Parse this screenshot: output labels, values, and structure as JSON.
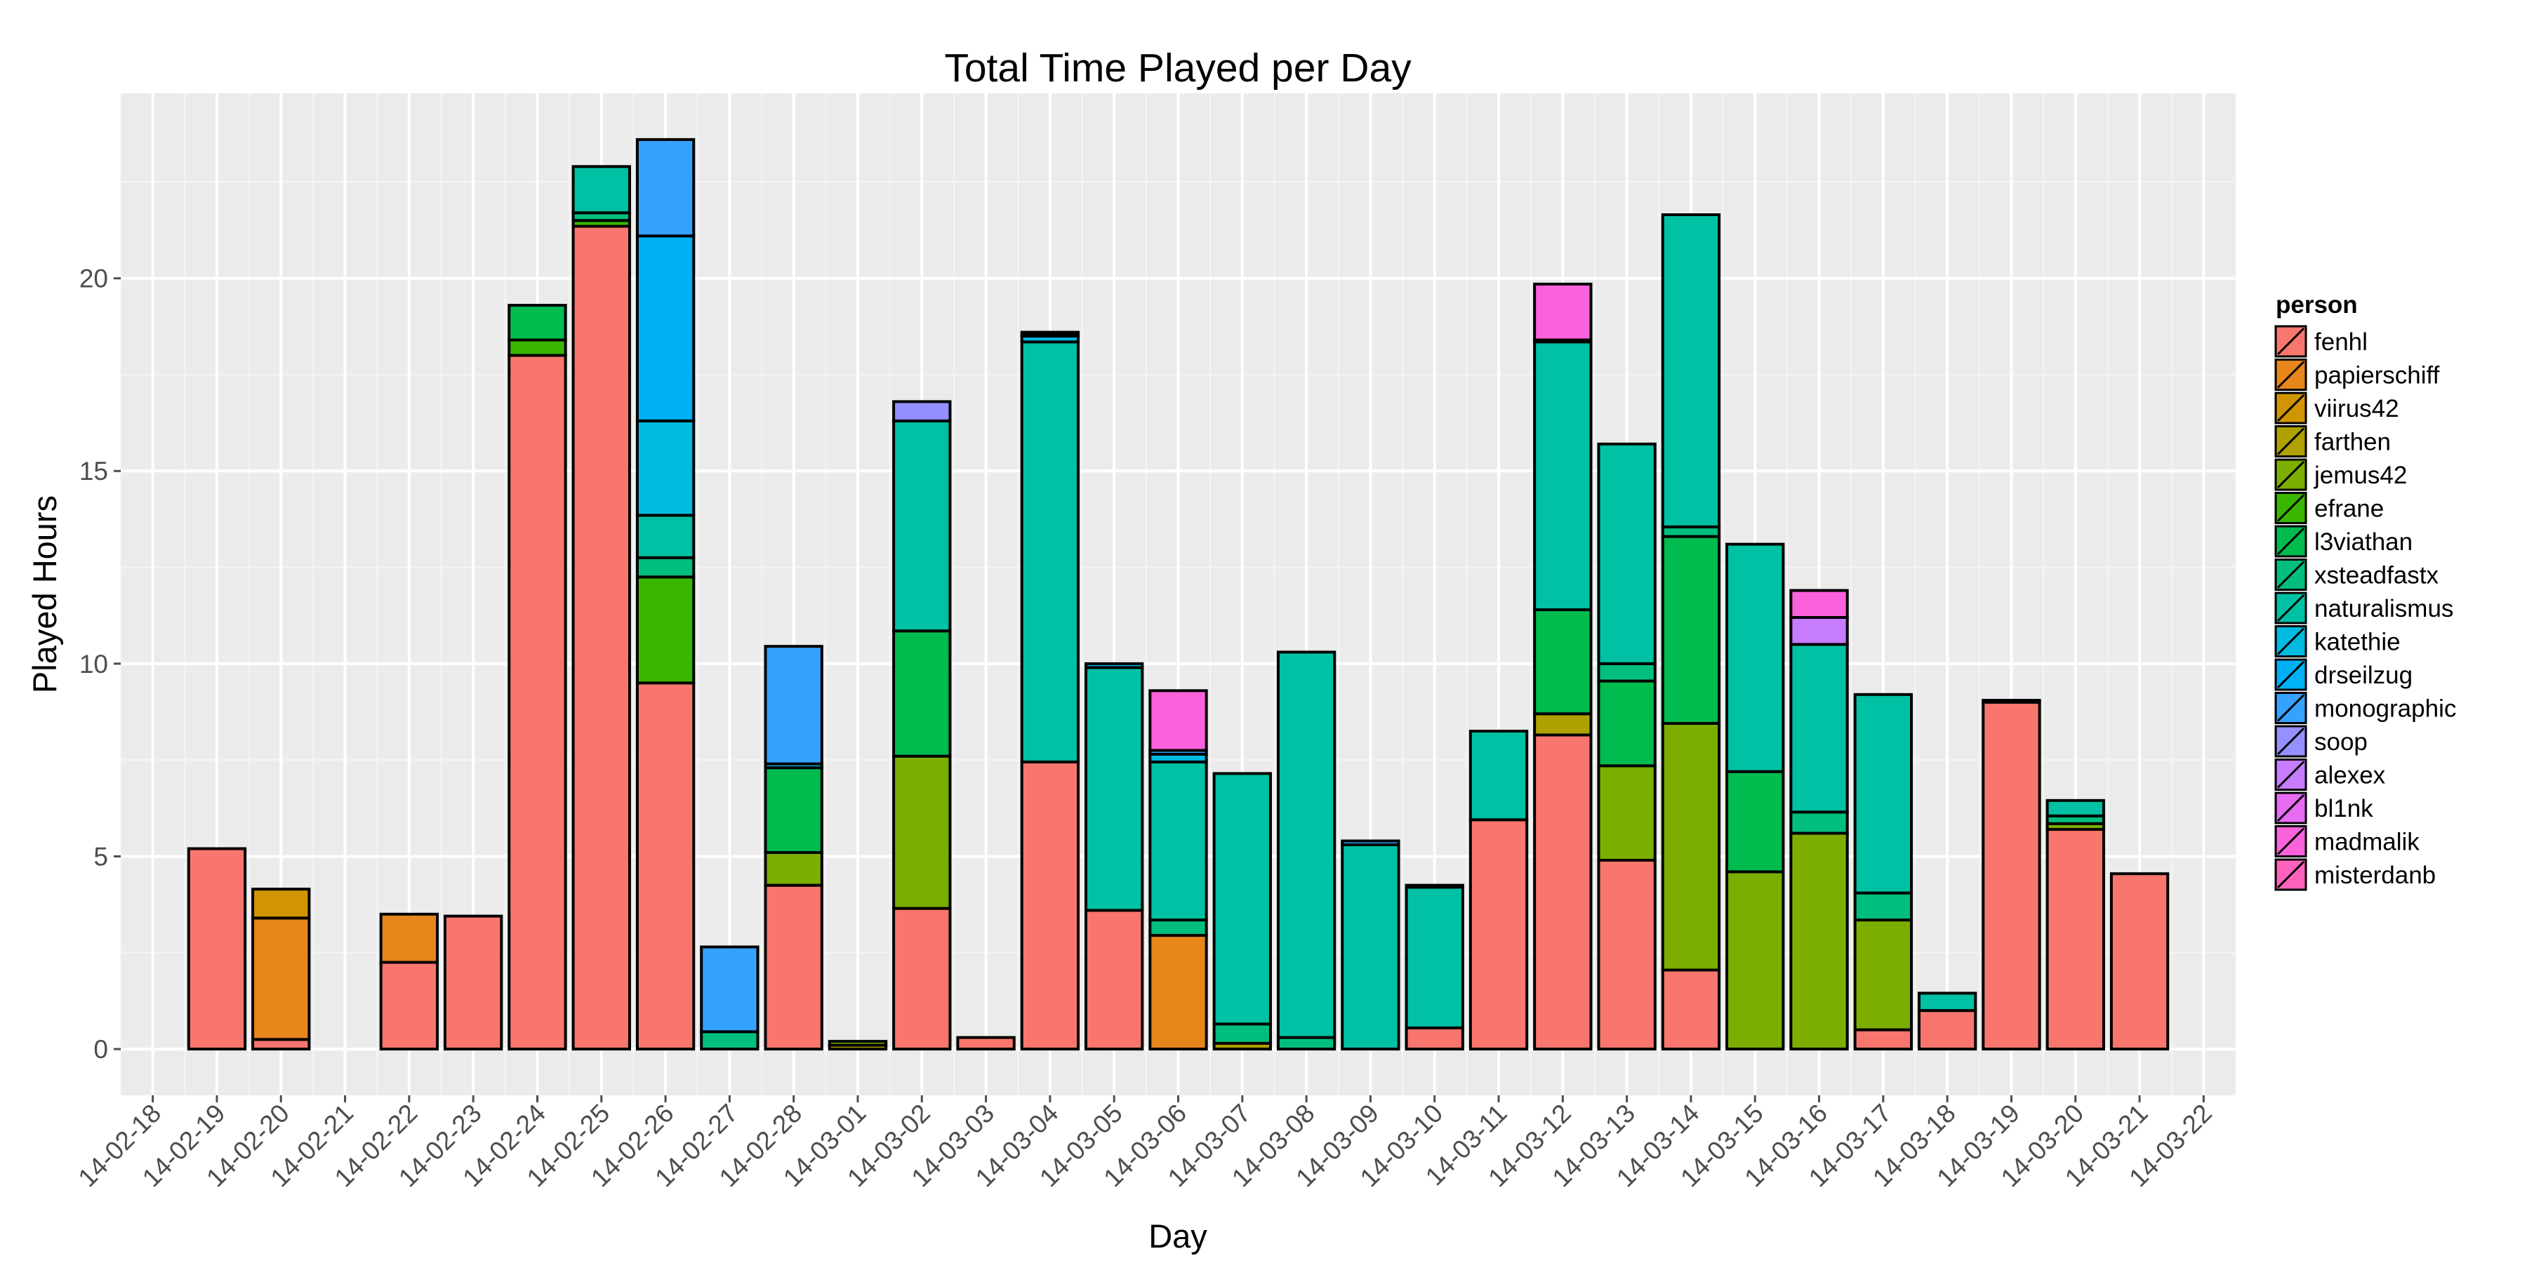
{
  "chart_data": {
    "type": "bar",
    "stacked": true,
    "title": "Total Time Played per Day",
    "xlabel": "Day",
    "ylabel": "Played Hours",
    "ylim": [
      -1.2,
      24.8
    ],
    "yticks": [
      0,
      5,
      10,
      15,
      20
    ],
    "grid": true,
    "legend": {
      "title": "person",
      "placement": "right"
    },
    "categories": [
      "14-02-18",
      "14-02-19",
      "14-02-20",
      "14-02-21",
      "14-02-22",
      "14-02-23",
      "14-02-24",
      "14-02-25",
      "14-02-26",
      "14-02-27",
      "14-02-28",
      "14-03-01",
      "14-03-02",
      "14-03-03",
      "14-03-04",
      "14-03-05",
      "14-03-06",
      "14-03-07",
      "14-03-08",
      "14-03-09",
      "14-03-10",
      "14-03-11",
      "14-03-12",
      "14-03-13",
      "14-03-14",
      "14-03-15",
      "14-03-16",
      "14-03-17",
      "14-03-18",
      "14-03-19",
      "14-03-20",
      "14-03-21",
      "14-03-22"
    ],
    "series": [
      {
        "name": "fenhl",
        "color": "#F8766D",
        "values": [
          0,
          5.2,
          0.25,
          0,
          2.25,
          3.45,
          18.0,
          21.35,
          9.5,
          0,
          4.25,
          0,
          3.65,
          0.3,
          7.45,
          3.6,
          0,
          0,
          0,
          0,
          0.55,
          5.95,
          8.15,
          4.9,
          2.05,
          0,
          0,
          0.5,
          1.0,
          9.0,
          5.7,
          4.55,
          0
        ]
      },
      {
        "name": "papierschiff",
        "color": "#E7861B",
        "values": [
          0,
          0,
          3.15,
          0,
          1.25,
          0,
          0,
          0,
          0,
          0,
          0,
          0,
          0,
          0,
          0,
          0,
          2.95,
          0,
          0,
          0,
          0,
          0,
          0,
          0,
          0,
          0,
          0,
          0,
          0,
          0,
          0,
          0,
          0
        ]
      },
      {
        "name": "viirus42",
        "color": "#D09500",
        "values": [
          0,
          0,
          0.75,
          0,
          0,
          0,
          0,
          0,
          0,
          0,
          0,
          0,
          0,
          0,
          0,
          0,
          0,
          0,
          0,
          0,
          0,
          0,
          0,
          0,
          0,
          0,
          0,
          0,
          0,
          0,
          0,
          0,
          0
        ]
      },
      {
        "name": "farthen",
        "color": "#AFA100",
        "values": [
          0,
          0,
          0,
          0,
          0,
          0,
          0,
          0,
          0,
          0,
          0,
          0.1,
          0,
          0,
          0,
          0,
          0,
          0.15,
          0,
          0,
          0,
          0,
          0.55,
          0,
          0,
          0,
          0,
          0,
          0,
          0,
          0,
          0,
          0
        ]
      },
      {
        "name": "jemus42",
        "color": "#7CAE00",
        "values": [
          0,
          0,
          0,
          0,
          0,
          0,
          0,
          0,
          0,
          0,
          0.85,
          0.1,
          3.95,
          0,
          0,
          0,
          0,
          0,
          0,
          0,
          0,
          0,
          0,
          2.45,
          6.4,
          4.6,
          5.6,
          2.85,
          0,
          0,
          0.15,
          0,
          0
        ]
      },
      {
        "name": "efrane",
        "color": "#39B600",
        "values": [
          0,
          0,
          0,
          0,
          0,
          0,
          0.4,
          0.15,
          2.75,
          0,
          0,
          0,
          0,
          0,
          0,
          0,
          0,
          0,
          0,
          0,
          0,
          0,
          0,
          0,
          0,
          0,
          0,
          0,
          0,
          0,
          0,
          0,
          0
        ]
      },
      {
        "name": "l3viathan",
        "color": "#00BB4E",
        "values": [
          0,
          0,
          0,
          0,
          0,
          0,
          0.9,
          0,
          0,
          0,
          2.2,
          0,
          3.25,
          0,
          0,
          0,
          0,
          0,
          0,
          0,
          0,
          0,
          2.7,
          2.2,
          4.85,
          2.6,
          0,
          0,
          0,
          0,
          0,
          0,
          0
        ]
      },
      {
        "name": "xsteadfastx",
        "color": "#00BF7D",
        "values": [
          0,
          0,
          0,
          0,
          0,
          0,
          0,
          0.2,
          0.5,
          0.45,
          0,
          0,
          0,
          0,
          0,
          0,
          0.4,
          0.5,
          0.3,
          0,
          0,
          0,
          0,
          0.45,
          0.25,
          0,
          0.55,
          0.7,
          0,
          0,
          0.2,
          0,
          0
        ]
      },
      {
        "name": "naturalismus",
        "color": "#00C1A3",
        "values": [
          0,
          0,
          0,
          0,
          0,
          0,
          0,
          1.2,
          1.1,
          0,
          0,
          0,
          5.45,
          0,
          10.9,
          6.3,
          4.1,
          6.5,
          10.0,
          5.3,
          3.65,
          2.3,
          6.95,
          5.7,
          8.1,
          5.9,
          4.35,
          5.15,
          0.45,
          0,
          0.4,
          0,
          0
        ]
      },
      {
        "name": "katethie",
        "color": "#00BAE0",
        "values": [
          0,
          0,
          0,
          0,
          0,
          0,
          0,
          0,
          2.45,
          0,
          0.1,
          0,
          0,
          0,
          0.15,
          0.1,
          0.2,
          0,
          0,
          0,
          0.05,
          0,
          0.05,
          0,
          0,
          0,
          0,
          0,
          0,
          0,
          0,
          0,
          0
        ]
      },
      {
        "name": "drseilzug",
        "color": "#00B0F6",
        "values": [
          0,
          0,
          0,
          0,
          0,
          0,
          0,
          0,
          4.8,
          0,
          0,
          0,
          0,
          0,
          0,
          0,
          0,
          0,
          0,
          0,
          0,
          0,
          0,
          0,
          0,
          0,
          0,
          0,
          0,
          0,
          0,
          0,
          0
        ]
      },
      {
        "name": "monographic",
        "color": "#35A2FF",
        "values": [
          0,
          0,
          0,
          0,
          0,
          0,
          0,
          0,
          2.5,
          2.2,
          3.05,
          0,
          0,
          0,
          0.05,
          0,
          0.1,
          0,
          0,
          0.1,
          0,
          0,
          0,
          0,
          0,
          0,
          0,
          0,
          0,
          0.05,
          0,
          0,
          0
        ]
      },
      {
        "name": "soop",
        "color": "#9590FF",
        "values": [
          0,
          0,
          0,
          0,
          0,
          0,
          0,
          0,
          0,
          0,
          0,
          0,
          0.5,
          0,
          0.05,
          0,
          0,
          0,
          0,
          0,
          0,
          0,
          0,
          0,
          0,
          0,
          0,
          0,
          0,
          0,
          0,
          0,
          0
        ]
      },
      {
        "name": "alexex",
        "color": "#C77CFF",
        "values": [
          0,
          0,
          0,
          0,
          0,
          0,
          0,
          0,
          0,
          0,
          0,
          0,
          0,
          0,
          0,
          0,
          0,
          0,
          0,
          0,
          0,
          0,
          0,
          0,
          0,
          0,
          0.7,
          0,
          0,
          0,
          0,
          0,
          0
        ]
      },
      {
        "name": "bl1nk",
        "color": "#E76BF3",
        "values": [
          0,
          0,
          0,
          0,
          0,
          0,
          0,
          0,
          0,
          0,
          0,
          0,
          0,
          0,
          0,
          0,
          0,
          0,
          0,
          0,
          0,
          0,
          0,
          0,
          0,
          0,
          0,
          0,
          0,
          0,
          0,
          0,
          0
        ]
      },
      {
        "name": "madmalik",
        "color": "#FA62DB",
        "values": [
          0,
          0,
          0,
          0,
          0,
          0,
          0,
          0,
          0,
          0,
          0,
          0,
          0,
          0,
          0,
          0,
          1.55,
          0,
          0,
          0,
          0,
          0,
          1.45,
          0,
          0,
          0,
          0.7,
          0,
          0,
          0,
          0,
          0,
          0
        ]
      },
      {
        "name": "misterdanb",
        "color": "#FF62BC",
        "values": [
          0,
          0,
          0,
          0,
          0,
          0,
          0,
          0,
          0,
          0,
          0,
          0,
          0,
          0,
          0,
          0,
          0,
          0,
          0,
          0,
          0,
          0,
          0,
          0,
          0,
          0,
          0,
          0,
          0,
          0,
          0,
          0,
          0
        ]
      }
    ]
  }
}
